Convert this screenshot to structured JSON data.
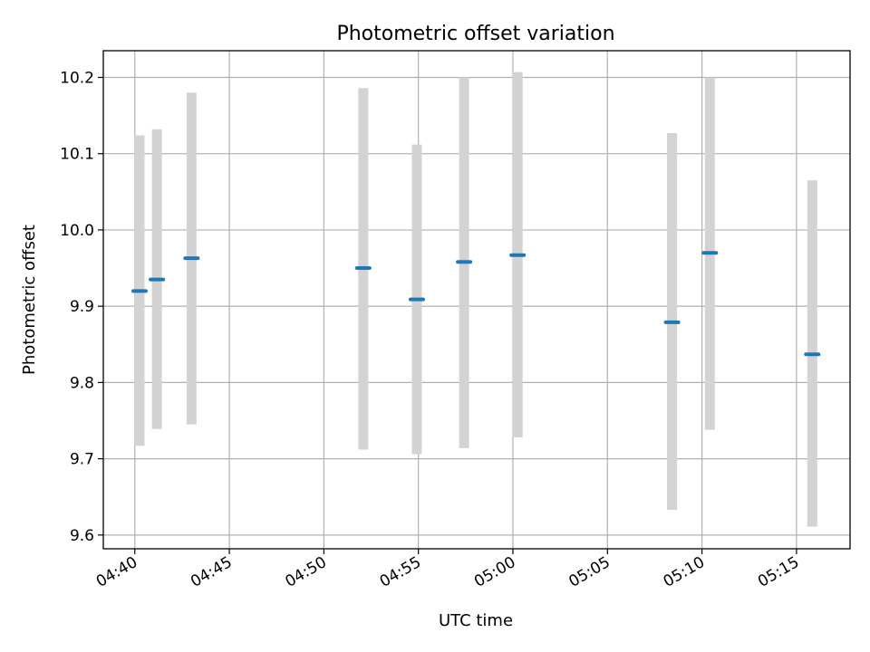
{
  "chart_data": {
    "type": "scatter",
    "title": "Photometric offset variation",
    "xlabel": "UTC time",
    "ylabel": "Photometric offset",
    "xlim": [
      "04:38:20",
      "05:17:50"
    ],
    "ylim": [
      9.582,
      10.235
    ],
    "grid": true,
    "x_ticks": [
      "04:40",
      "04:45",
      "04:50",
      "04:55",
      "05:00",
      "05:05",
      "05:10",
      "05:15"
    ],
    "y_ticks": [
      "9.6",
      "9.7",
      "9.8",
      "9.9",
      "10.0",
      "10.1",
      "10.2"
    ],
    "y_tick_values": [
      9.6,
      9.7,
      9.8,
      9.9,
      10.0,
      10.1,
      10.2
    ],
    "series": [
      {
        "points": [
          {
            "x": "04:40:15",
            "y": 9.92,
            "err_low": 9.717,
            "err_high": 10.124
          },
          {
            "x": "04:41:10",
            "y": 9.935,
            "err_low": 9.739,
            "err_high": 10.132
          },
          {
            "x": "04:43:00",
            "y": 9.963,
            "err_low": 9.745,
            "err_high": 10.18
          },
          {
            "x": "04:52:05",
            "y": 9.95,
            "err_low": 9.712,
            "err_high": 10.186
          },
          {
            "x": "04:54:55",
            "y": 9.909,
            "err_low": 9.706,
            "err_high": 10.112
          },
          {
            "x": "04:57:25",
            "y": 9.958,
            "err_low": 9.714,
            "err_high": 10.2
          },
          {
            "x": "05:00:15",
            "y": 9.967,
            "err_low": 9.728,
            "err_high": 10.207
          },
          {
            "x": "05:08:25",
            "y": 9.879,
            "err_low": 9.633,
            "err_high": 10.127
          },
          {
            "x": "05:10:25",
            "y": 9.97,
            "err_low": 9.738,
            "err_high": 10.2
          },
          {
            "x": "05:15:50",
            "y": 9.837,
            "err_low": 9.611,
            "err_high": 10.065
          }
        ]
      }
    ],
    "colors": {
      "marker": "#1f77b4",
      "errorbar": "#d3d3d3",
      "grid": "#b0b0b0",
      "axes": "#000000"
    }
  }
}
